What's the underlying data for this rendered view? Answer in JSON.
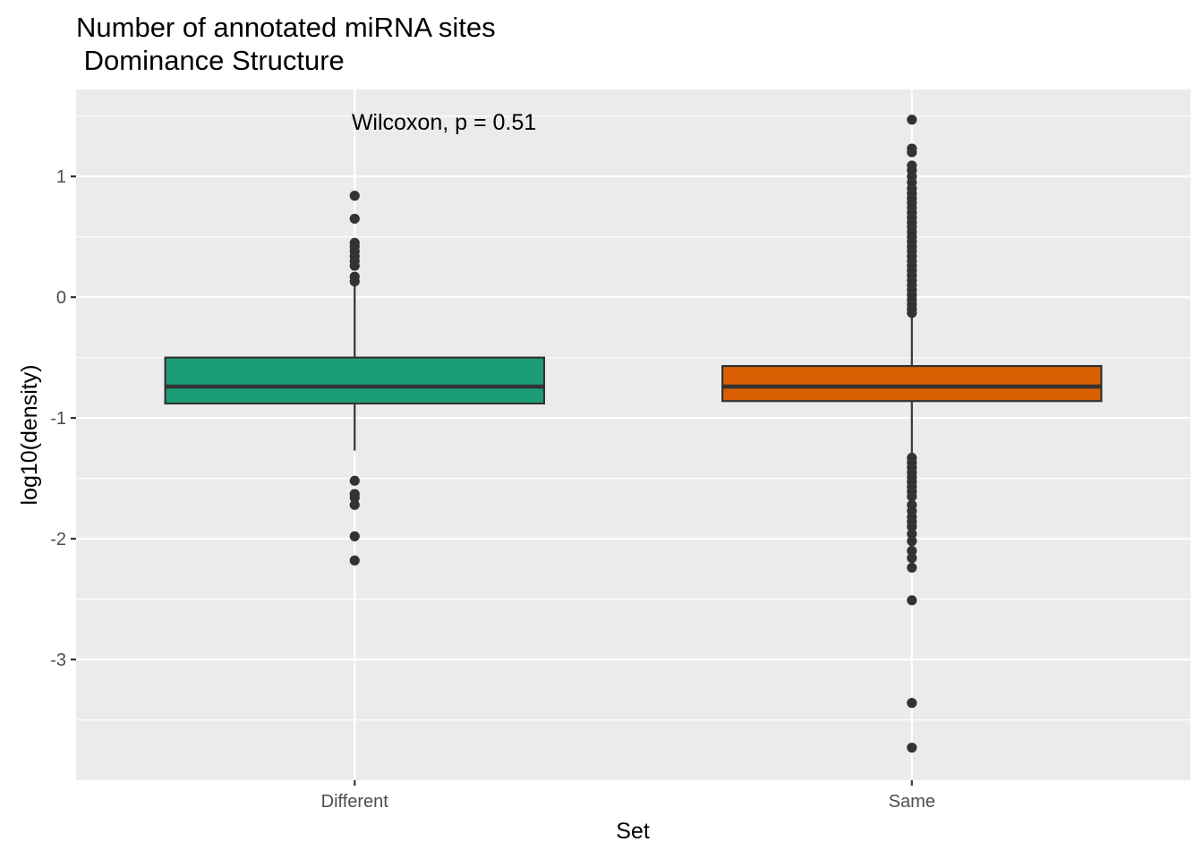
{
  "chart_data": {
    "type": "boxplot",
    "title": "Number of annotated miRNA sites",
    "subtitle": " Dominance Structure",
    "xlabel": "Set",
    "ylabel": "log10(density)",
    "ylim": [
      -4.0,
      1.72
    ],
    "y_ticks": [
      1,
      0,
      -1,
      -2,
      -3
    ],
    "y_tick_labels": [
      "1",
      "0",
      "-1",
      "-2",
      "-3"
    ],
    "categories": [
      "Different",
      "Same"
    ],
    "annotation": "Wilcoxon, p = 0.51",
    "colors": {
      "panel": "#ebebeb",
      "grid": "#ffffff",
      "outline": "#333333",
      "tick": "#333333"
    },
    "boxes": [
      {
        "name": "Different",
        "fill": "#1b9e77",
        "q1": -0.88,
        "median": -0.74,
        "q3": -0.5,
        "whisker_low": -1.27,
        "whisker_high": 0.12,
        "outliers": [
          0.84,
          0.65,
          0.45,
          0.42,
          0.38,
          0.34,
          0.3,
          0.26,
          0.17,
          0.13,
          -1.52,
          -1.63,
          -1.66,
          -1.72,
          -1.98,
          -2.18
        ]
      },
      {
        "name": "Same",
        "fill": "#d95f02",
        "q1": -0.86,
        "median": -0.74,
        "q3": -0.57,
        "whisker_low": -1.3,
        "whisker_high": -0.14,
        "outliers": [
          1.47,
          1.23,
          1.2,
          1.09,
          1.05,
          1.0,
          0.95,
          0.9,
          0.86,
          0.82,
          0.78,
          0.74,
          0.7,
          0.66,
          0.62,
          0.58,
          0.54,
          0.5,
          0.46,
          0.42,
          0.38,
          0.34,
          0.3,
          0.26,
          0.22,
          0.18,
          0.14,
          0.1,
          0.06,
          0.02,
          -0.02,
          -0.06,
          -0.1,
          -0.13,
          -1.33,
          -1.37,
          -1.41,
          -1.45,
          -1.49,
          -1.53,
          -1.57,
          -1.61,
          -1.65,
          -1.72,
          -1.77,
          -1.82,
          -1.86,
          -1.9,
          -1.96,
          -2.02,
          -2.1,
          -2.16,
          -2.24,
          -2.51,
          -3.36,
          -3.73
        ]
      }
    ]
  }
}
